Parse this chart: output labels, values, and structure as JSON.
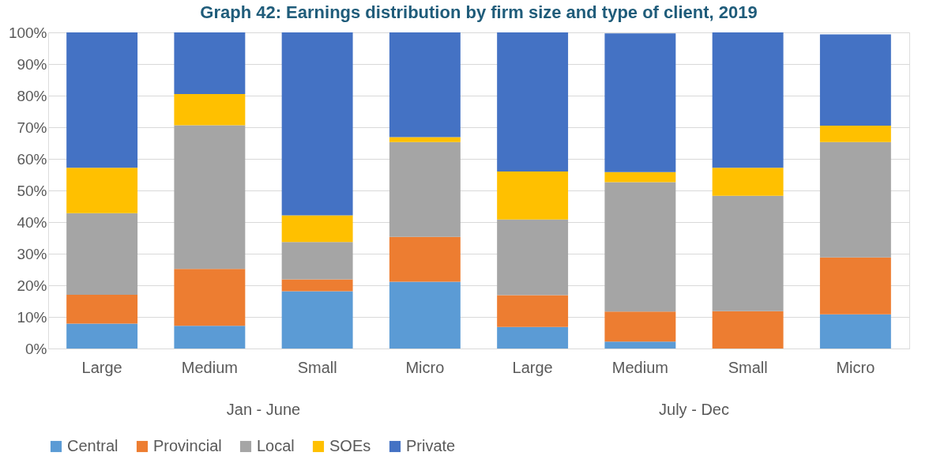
{
  "chart_data": {
    "type": "bar",
    "stacked": true,
    "title": "Graph 42: Earnings distribution by firm size and type of client, 2019",
    "categories": [
      "Large",
      "Medium",
      "Small",
      "Micro",
      "Large",
      "Medium",
      "Small",
      "Micro"
    ],
    "annotations": [
      "Jan - June",
      "July - Dec"
    ],
    "series": [
      {
        "name": "Central",
        "color": "#5b9bd5",
        "values": [
          7.9,
          7.2,
          18.1,
          21.1,
          6.8,
          2.2,
          0,
          10.8
        ]
      },
      {
        "name": "Provincial",
        "color": "#ed7d31",
        "values": [
          9.1,
          18.0,
          3.8,
          14.2,
          10.1,
          9.5,
          11.8,
          18.0
        ]
      },
      {
        "name": "Local",
        "color": "#a5a5a5",
        "values": [
          25.8,
          45.4,
          11.8,
          30.0,
          23.9,
          40.9,
          36.5,
          36.5
        ]
      },
      {
        "name": "SOEs",
        "color": "#ffc000",
        "values": [
          14.4,
          9.9,
          8.4,
          1.6,
          15.2,
          3.2,
          8.9,
          5.2
        ]
      },
      {
        "name": "Private",
        "color": "#4472c4",
        "values": [
          42.8,
          19.5,
          57.9,
          33.1,
          44.0,
          43.9,
          42.8,
          28.9
        ]
      }
    ],
    "ylim": [
      0,
      100
    ],
    "yticks": [
      {
        "value": 0,
        "label": "0%"
      },
      {
        "value": 10,
        "label": "10%"
      },
      {
        "value": 20,
        "label": "20%"
      },
      {
        "value": 30,
        "label": "30%"
      },
      {
        "value": 40,
        "label": "40%"
      },
      {
        "value": 50,
        "label": "50%"
      },
      {
        "value": 60,
        "label": "60%"
      },
      {
        "value": 70,
        "label": "70%"
      },
      {
        "value": 80,
        "label": "80%"
      },
      {
        "value": 90,
        "label": "90%"
      },
      {
        "value": 100,
        "label": "100%"
      }
    ],
    "grid": "y",
    "legend": "bottom"
  }
}
